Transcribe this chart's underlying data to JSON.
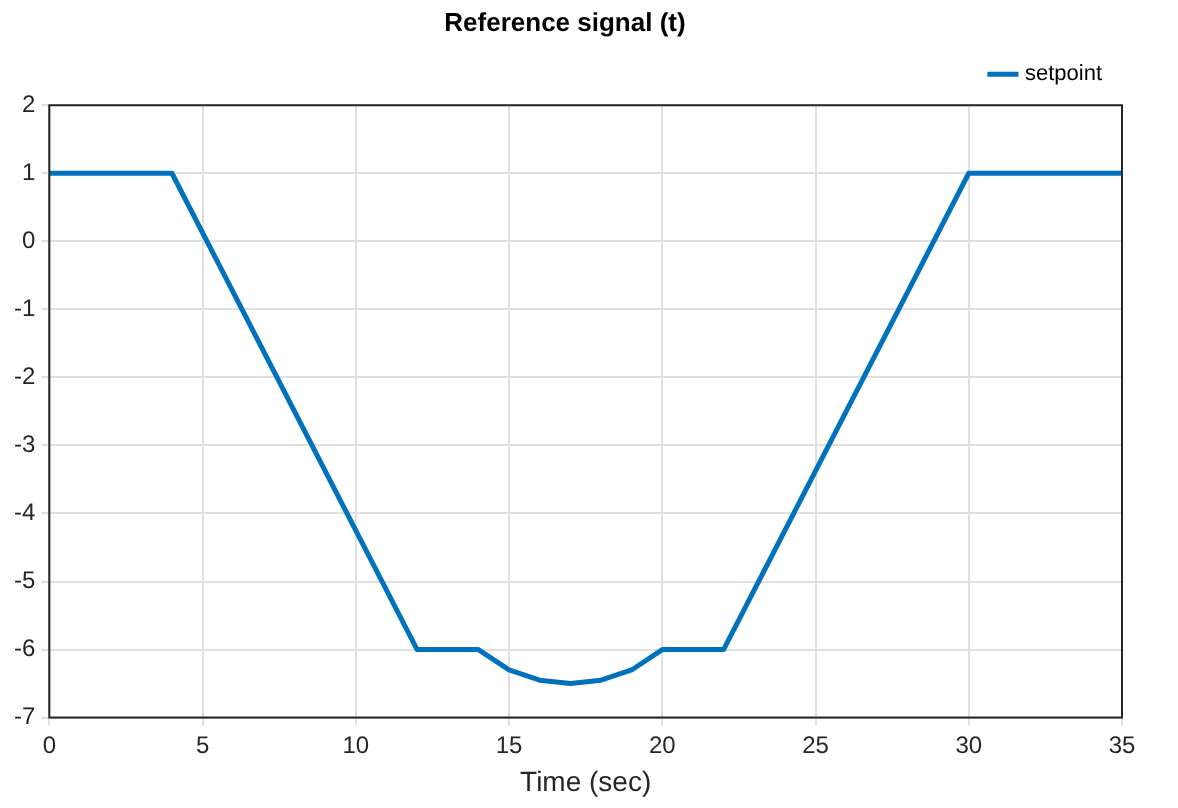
{
  "chart_data": {
    "type": "line",
    "title": "Reference signal (t)",
    "xlabel": "Time (sec)",
    "series": [
      {
        "name": "setpoint",
        "color": "#0072bd",
        "x": [
          0,
          4,
          12,
          14,
          15,
          16,
          17,
          18,
          19,
          20,
          22,
          30,
          35
        ],
        "values": [
          1,
          1,
          -6,
          -6,
          -6.3,
          -6.45,
          -6.5,
          -6.45,
          -6.3,
          -6,
          -6,
          1,
          1
        ]
      }
    ],
    "xlim": [
      0,
      35
    ],
    "xticks": [
      0,
      5,
      10,
      15,
      20,
      25,
      30,
      35
    ],
    "ylim": [
      -7,
      2
    ],
    "yticks": [
      -7,
      -6,
      -5,
      -4,
      -3,
      -2,
      -1,
      0,
      1,
      2
    ],
    "grid": true,
    "legend": "top right",
    "marker": "none",
    "line_style": "solid"
  }
}
